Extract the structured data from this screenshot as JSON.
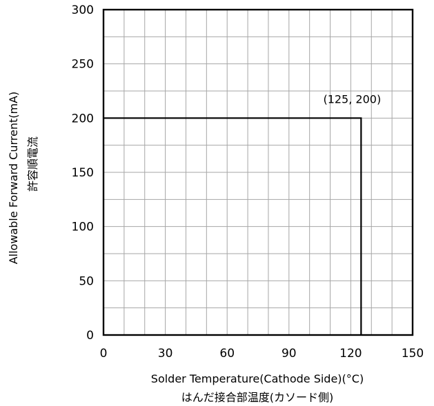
{
  "chart_data": {
    "type": "line",
    "title": "",
    "xlabel": "Solder Temperature(Cathode Side)(°C)",
    "xlabel_jp": "はんだ接合部温度(カソード側)",
    "ylabel": "Allowable Forward Current(mA)",
    "ylabel_jp": "許容順電流",
    "xlim": [
      0,
      150
    ],
    "ylim": [
      0,
      300
    ],
    "x_ticks": [
      "0",
      "30",
      "60",
      "90",
      "120",
      "150"
    ],
    "y_ticks": [
      "0",
      "50",
      "100",
      "150",
      "200",
      "250",
      "300"
    ],
    "grid": true,
    "series": [
      {
        "x": [
          0,
          125,
          125
        ],
        "y": [
          200,
          200,
          0
        ]
      }
    ],
    "annotations": [
      {
        "text": "(125, 200)",
        "x": 125,
        "y": 200
      }
    ]
  }
}
